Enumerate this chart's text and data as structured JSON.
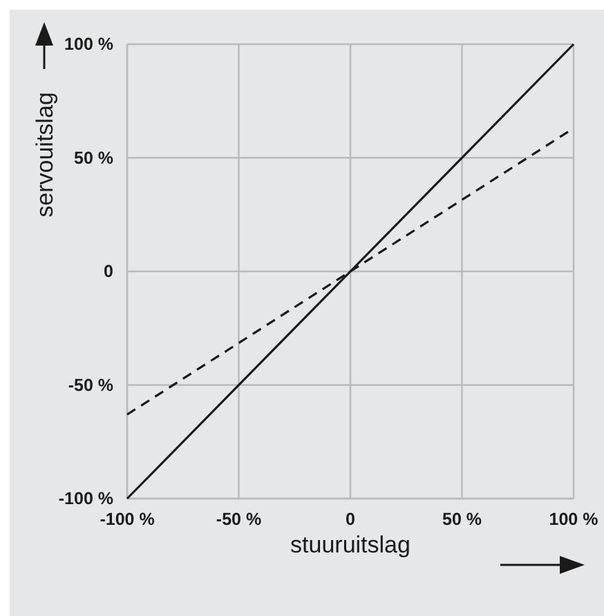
{
  "chart_data": {
    "type": "line",
    "xlabel": "stuuruitslag",
    "ylabel": "servouitslag",
    "x": [
      -100,
      100
    ],
    "series": [
      {
        "color": "#1a1a1a",
        "values": [
          -100,
          100
        ],
        "line_style": "solid"
      },
      {
        "color": "#1a1a1a",
        "values": [
          -63,
          63
        ],
        "line_style": "dashed"
      }
    ],
    "xlim": [
      -100,
      100
    ],
    "ylim": [
      -100,
      100
    ],
    "xticks": [
      {
        "value": -100,
        "label": "-100 %"
      },
      {
        "value": -50,
        "label": "-50 %"
      },
      0,
      {
        "value": 50,
        "label": "50 %"
      },
      {
        "value": 100,
        "label": "100 %"
      }
    ],
    "yticks": [
      {
        "value": -100,
        "label": "-100 %"
      },
      {
        "value": -50,
        "label": "-50 %"
      },
      0,
      {
        "value": 50,
        "label": "50 %"
      },
      {
        "value": 100,
        "label": "100 %"
      }
    ],
    "grid": true,
    "marker": "none"
  }
}
